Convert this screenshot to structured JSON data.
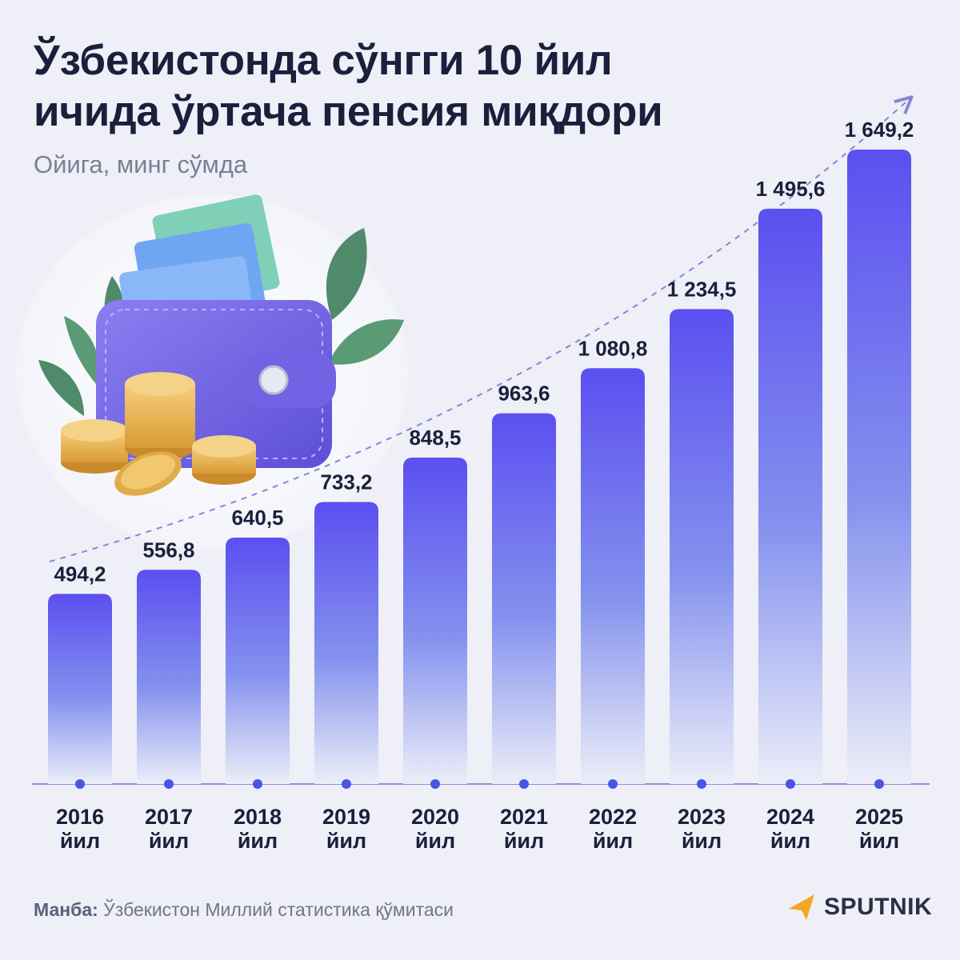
{
  "header": {
    "title_line1": "Ўзбекистонда сўнгги 10 йил",
    "title_line2": "ичида ўртача пенсия миқдори",
    "subtitle": "Ойига, минг сўмда"
  },
  "chart_data": {
    "type": "bar",
    "categories": [
      "2016",
      "2017",
      "2018",
      "2019",
      "2020",
      "2021",
      "2022",
      "2023",
      "2024",
      "2025"
    ],
    "category_suffix": "йил",
    "values": [
      494.2,
      556.8,
      640.5,
      733.2,
      848.5,
      963.6,
      1080.8,
      1234.5,
      1495.6,
      1649.2
    ],
    "value_labels": [
      "494,2",
      "556,8",
      "640,5",
      "733,2",
      "848,5",
      "963,6",
      "1 080,8",
      "1 234,5",
      "1 495,6",
      "1 649,2"
    ],
    "title": "Ўзбекистонда сўнгги 10 йил ичида ўртача пенсия миқдори",
    "subtitle": "Ойига, минг сўмда",
    "xlabel": "",
    "ylabel": "",
    "ylim": [
      0,
      1900
    ],
    "grid": false,
    "trend_arrow": true
  },
  "footer": {
    "source_label": "Манба:",
    "source_text": " Ўзбекистон Миллий статистика қўмитаси",
    "logo_text": "SPUTNIK"
  },
  "colors": {
    "bar_top": "#5b4ff0",
    "bar_bottom": "#e9eaf6",
    "axis": "#8f8fd8",
    "dot": "#4a55e6",
    "trend": "#8a84d8",
    "logo_accent": "#f5a623",
    "text_dark": "#1b1f3b"
  },
  "illustration": {
    "icon": "wallet-with-money-and-coins-icon"
  }
}
